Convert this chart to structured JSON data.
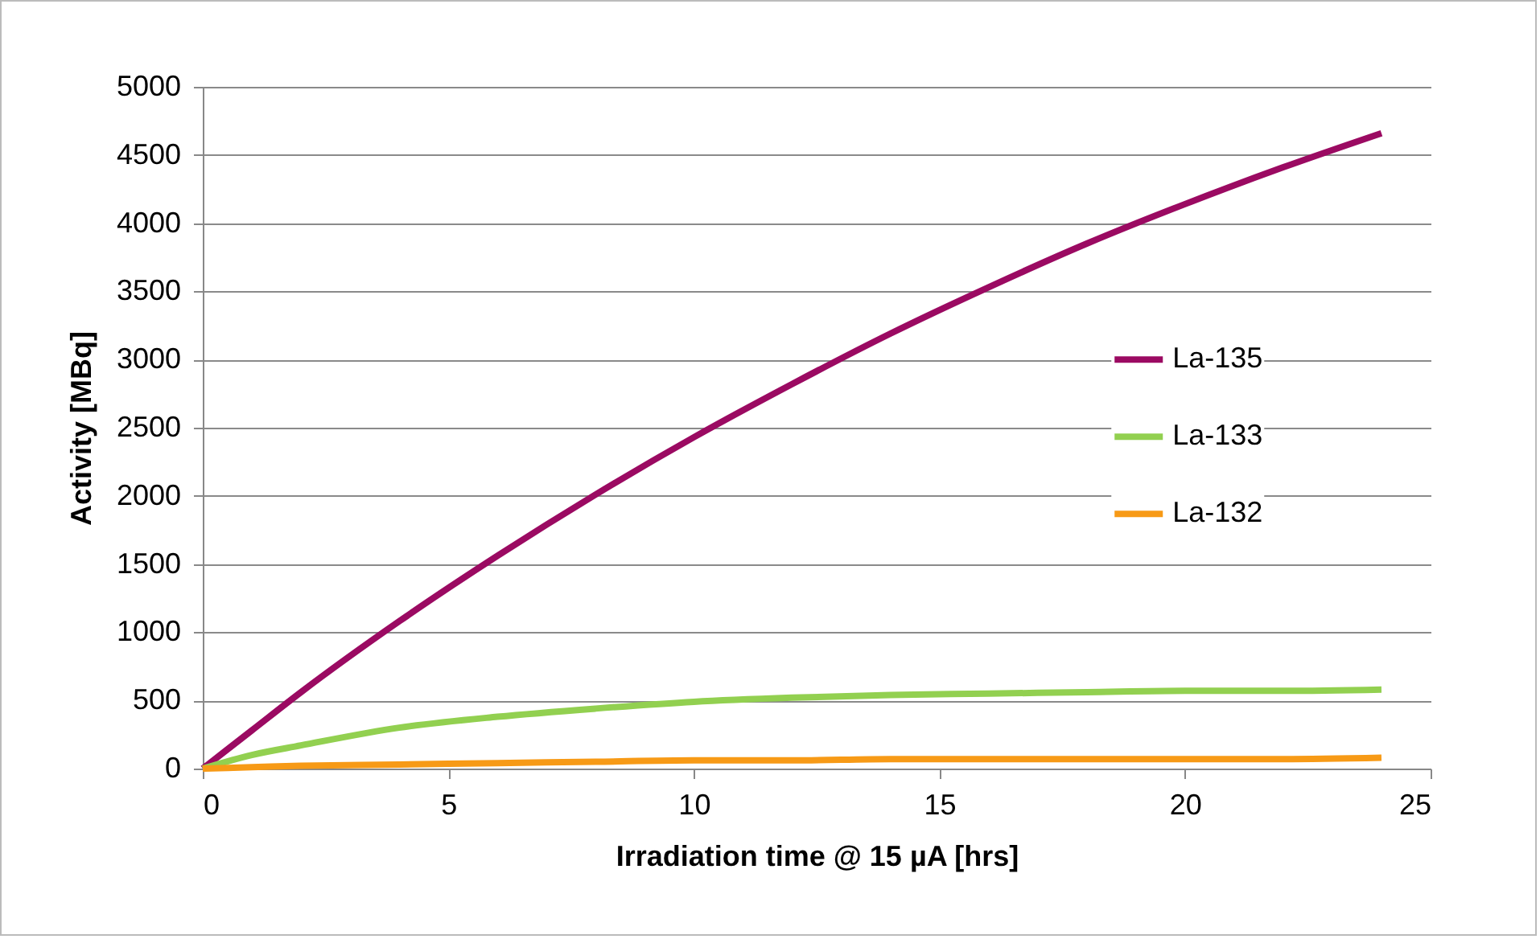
{
  "chart_data": {
    "type": "line",
    "xlabel": "Irradiation time @ 15 µA [hrs]",
    "ylabel": "Activity [MBq]",
    "x": [
      0,
      1,
      2,
      4,
      6,
      8,
      10,
      12,
      14,
      16,
      18,
      20,
      22,
      24
    ],
    "series": [
      {
        "name": "La-135",
        "color": "#9b0a62",
        "values": [
          0,
          280,
          560,
          1080,
          1560,
          2010,
          2430,
          2820,
          3190,
          3530,
          3850,
          4140,
          4410,
          4660
        ]
      },
      {
        "name": "La-133",
        "color": "#92d050",
        "values": [
          0,
          100,
          170,
          300,
          380,
          440,
          490,
          520,
          540,
          550,
          560,
          570,
          570,
          580
        ]
      },
      {
        "name": "La-132",
        "color": "#f79a16",
        "values": [
          0,
          10,
          20,
          30,
          40,
          50,
          60,
          60,
          70,
          70,
          70,
          70,
          70,
          80
        ]
      }
    ],
    "xlim": [
      0,
      25
    ],
    "xticks": [
      0,
      5,
      10,
      15,
      20,
      25
    ],
    "ylim": [
      0,
      5000
    ],
    "yticks": [
      0,
      500,
      1000,
      1500,
      2000,
      2500,
      3000,
      3500,
      4000,
      4500,
      5000
    ],
    "grid": "y",
    "legend": "right",
    "marker": "none",
    "line_style": "solid"
  }
}
